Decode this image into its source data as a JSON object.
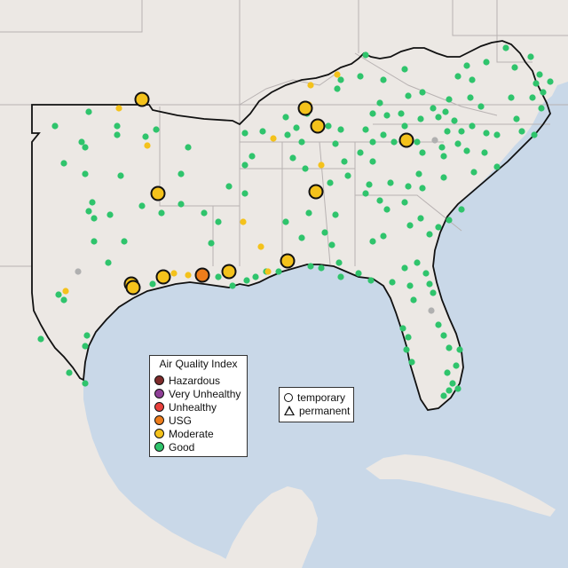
{
  "colors": {
    "land": "#ece8e4",
    "water": "#c9d8e8",
    "borders": "#b8b2b2",
    "region_outline": "#111111",
    "hazardous": "#7e2b2b",
    "very_unhealthy": "#8f3f97",
    "unhealthy": "#e8403c",
    "usg": "#ee7d1b",
    "moderate": "#f4c21b",
    "good": "#2fc46c",
    "no_data": "#b0b0b0"
  },
  "aqi_legend": {
    "title": "Air Quality Index",
    "items": [
      {
        "label": "Hazardous",
        "color_key": "hazardous"
      },
      {
        "label": "Very Unhealthy",
        "color_key": "very_unhealthy"
      },
      {
        "label": "Unhealthy",
        "color_key": "unhealthy"
      },
      {
        "label": "USG",
        "color_key": "usg"
      },
      {
        "label": "Moderate",
        "color_key": "moderate"
      },
      {
        "label": "Good",
        "color_key": "good"
      }
    ]
  },
  "monitor_legend": {
    "items": [
      {
        "label": "temporary",
        "icon": "circle-icon"
      },
      {
        "label": "permanent",
        "icon": "triangle-icon"
      }
    ]
  }
}
